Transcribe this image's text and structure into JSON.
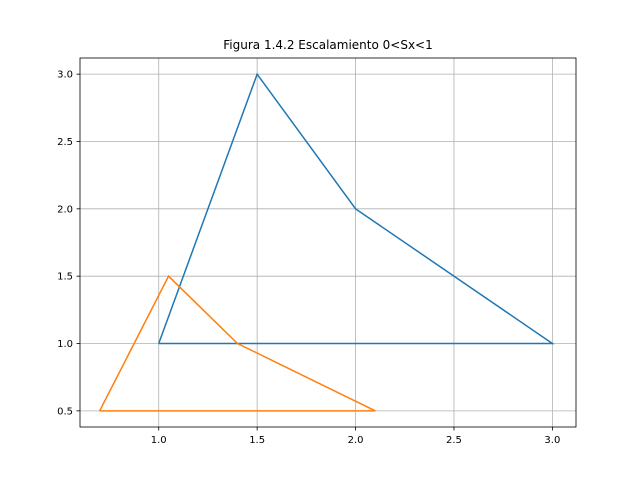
{
  "chart_data": {
    "type": "line",
    "title": "Figura 1.4.2 Escalamiento 0<Sx<1",
    "xlabel": "",
    "ylabel": "",
    "xlim": [
      0.6,
      3.12
    ],
    "ylim": [
      0.38,
      3.12
    ],
    "x_ticks": [
      1.0,
      1.5,
      2.0,
      2.5,
      3.0
    ],
    "x_tick_labels": [
      "1.0",
      "1.5",
      "2.0",
      "2.5",
      "3.0"
    ],
    "y_ticks": [
      0.5,
      1.0,
      1.5,
      2.0,
      2.5,
      3.0
    ],
    "y_tick_labels": [
      "0.5",
      "1.0",
      "1.5",
      "2.0",
      "2.5",
      "3.0"
    ],
    "grid": true,
    "series": [
      {
        "color": "#1f77b4",
        "x": [
          1.0,
          1.5,
          2.0,
          3.0,
          1.0
        ],
        "y": [
          1.0,
          3.0,
          2.0,
          1.0,
          1.0
        ]
      },
      {
        "color": "#ff7f0e",
        "x": [
          0.7,
          1.05,
          1.4,
          2.1,
          0.7
        ],
        "y": [
          0.5,
          1.5,
          1.0,
          0.5,
          0.5
        ]
      }
    ]
  }
}
